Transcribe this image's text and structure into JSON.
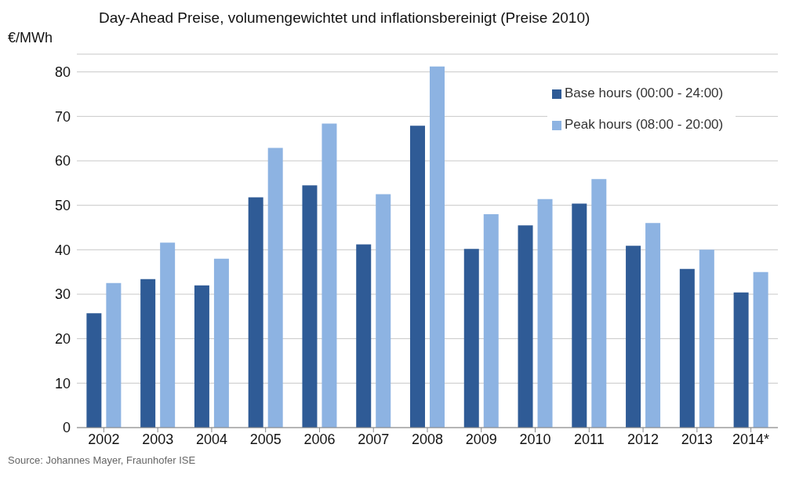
{
  "chart_data": {
    "type": "bar",
    "title": "Day-Ahead Preise, volumengewichtet und inflationsbereinigt (Preise 2010)",
    "ylabel": "€/MWh",
    "categories": [
      "2002",
      "2003",
      "2004",
      "2005",
      "2006",
      "2007",
      "2008",
      "2009",
      "2010",
      "2011",
      "2012",
      "2013",
      "2014*"
    ],
    "series": [
      {
        "name": "Base hours (00:00 - 24:00)",
        "color": "#2f5b96",
        "values": [
          25.7,
          33.4,
          32,
          51.8,
          54.5,
          41.2,
          67.9,
          40.2,
          45.5,
          50.4,
          40.9,
          35.7,
          30.4
        ]
      },
      {
        "name": "Peak hours (08:00 - 20:00)",
        "color": "#8db3e2",
        "values": [
          32.5,
          41.6,
          38,
          62.9,
          68.4,
          52.5,
          81.2,
          48,
          51.4,
          55.9,
          46,
          40,
          35
        ]
      }
    ],
    "ylim": [
      0,
      84
    ],
    "yticks": [
      0,
      10,
      20,
      30,
      40,
      50,
      60,
      70,
      80
    ],
    "grid": "y",
    "legend": "top right",
    "annotations": [
      "Source: Johannes Mayer, Fraunhofer ISE"
    ]
  }
}
